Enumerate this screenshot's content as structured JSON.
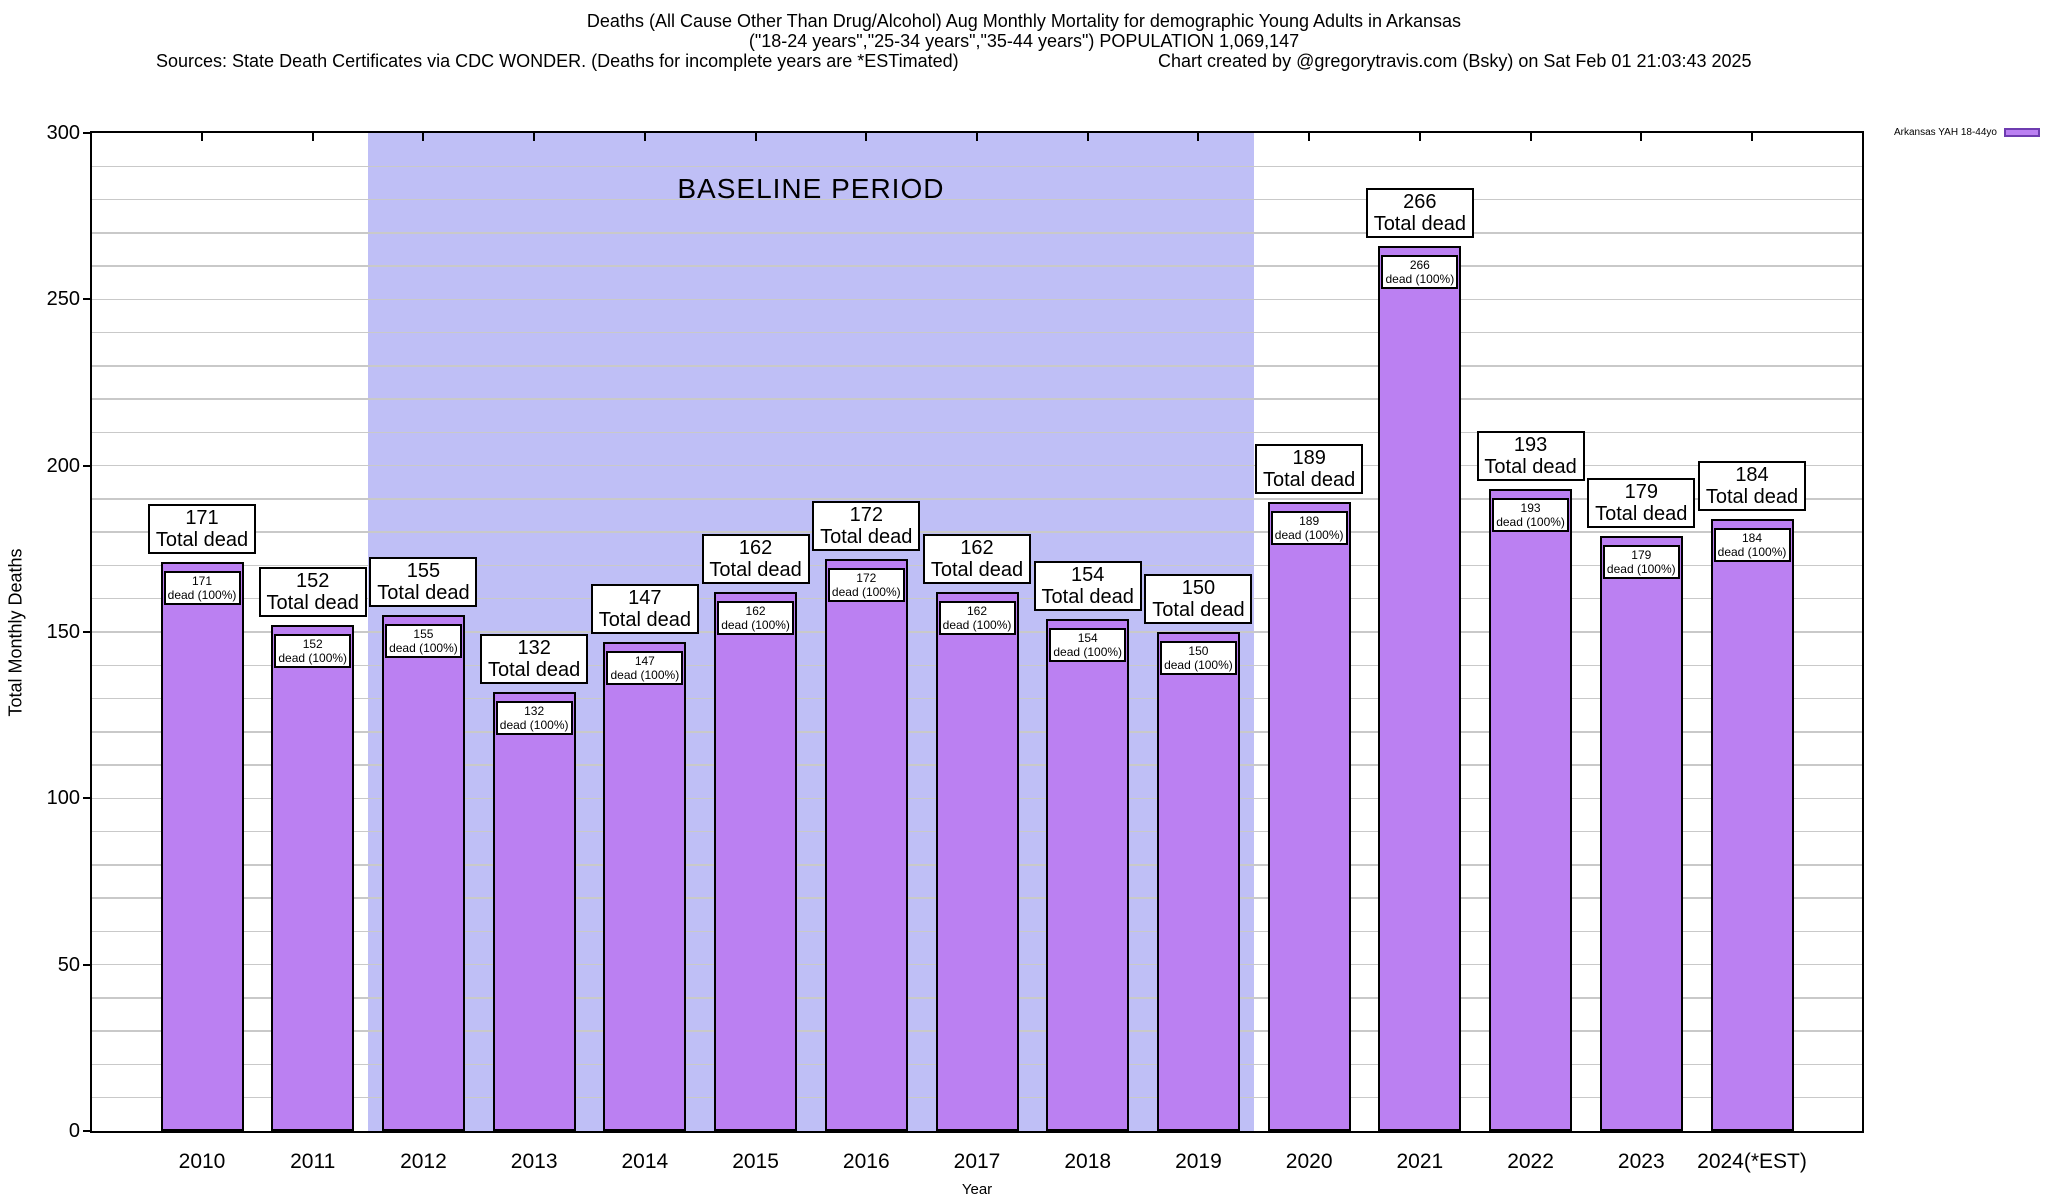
{
  "header": {
    "title_line1": "Deaths (All Cause Other Than Drug/Alcohol) Aug Monthly Mortality for demographic Young Adults in Arkansas",
    "title_line2": "(\"18-24 years\",\"25-34 years\",\"35-44 years\") POPULATION 1,069,147",
    "sources": "Sources: State Death Certificates via CDC WONDER. (Deaths for incomplete years are *ESTimated)",
    "credit": "Chart created by @gregorytravis.com (Bsky) on Sat Feb 01 21:03:43 2025"
  },
  "legend": {
    "label": "Arkansas YAH 18-44yo"
  },
  "chart_data": {
    "type": "bar",
    "title": "Deaths (All Cause Other Than Drug/Alcohol) Aug Monthly Mortality for demographic Young Adults in Arkansas",
    "subtitle": "(\"18-24 years\",\"25-34 years\",\"35-44 years\") POPULATION 1,069,147",
    "series_name": "Arkansas YAH 18-44yo",
    "categories": [
      "2010",
      "2011",
      "2012",
      "2013",
      "2014",
      "2015",
      "2016",
      "2017",
      "2018",
      "2019",
      "2020",
      "2021",
      "2022",
      "2023",
      "2024(*EST)"
    ],
    "values": [
      171,
      152,
      155,
      132,
      147,
      162,
      172,
      162,
      154,
      150,
      189,
      266,
      193,
      179,
      184
    ],
    "bar_top_label_line2": "Total dead",
    "bar_inner_label_line2": "dead (100%)",
    "baseline_band": {
      "label": "BASELINE PERIOD",
      "from_category": "2012",
      "to_category": "2019"
    },
    "xlabel": "Year",
    "ylabel": "Total Monthly Deaths",
    "ylim": [
      0,
      300
    ],
    "yticks": [
      0,
      50,
      100,
      150,
      200,
      250,
      300
    ],
    "grid_minor_step": 10,
    "grid": "horizontal-minor",
    "legend_position": "top-right-outside",
    "colors": {
      "bar_fill": "#bb80f2",
      "bar_border": "#000000",
      "band_fill": "#bfbff6",
      "grid_line": "#c9c9c9",
      "axis": "#000000",
      "legend_swatch_border": "#6e3cb0"
    }
  }
}
